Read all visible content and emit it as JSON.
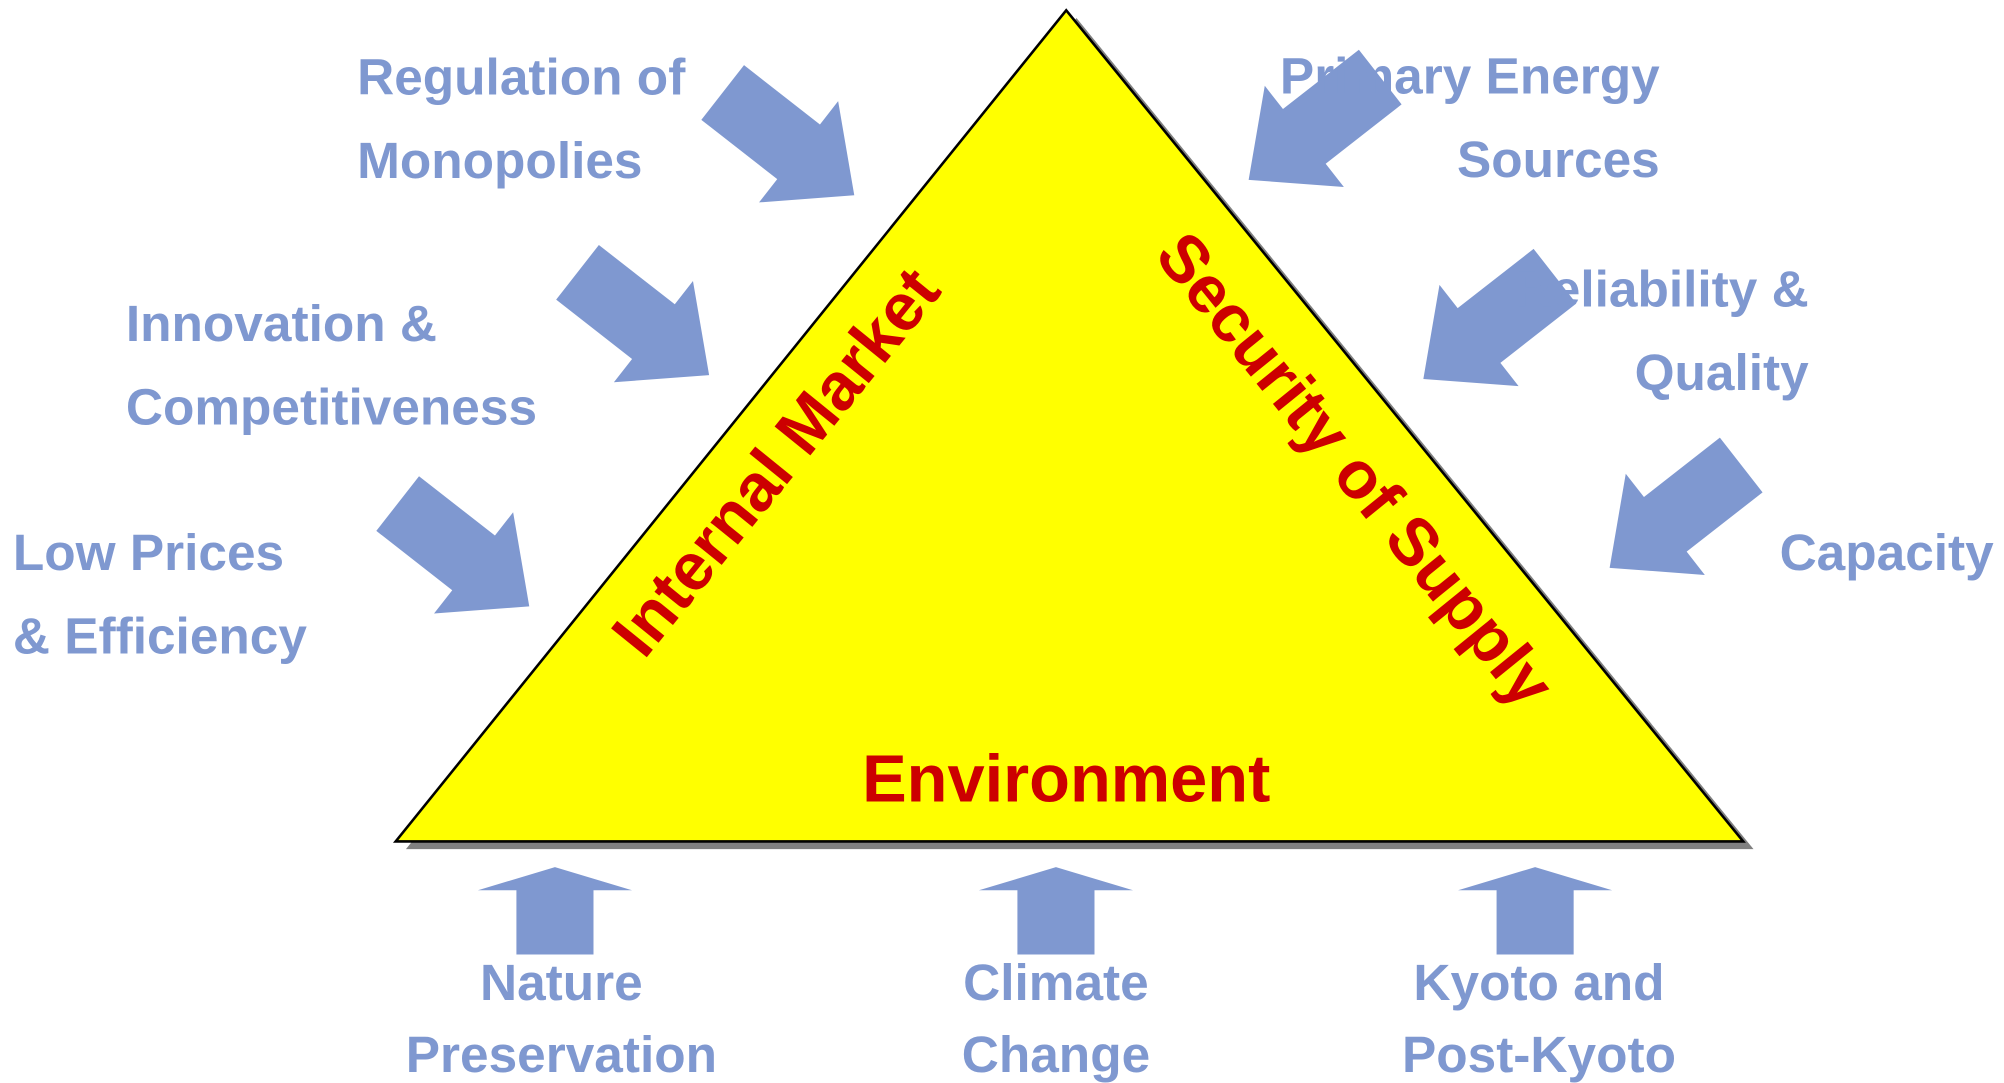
{
  "triangle": {
    "left": "Internal Market",
    "right": "Security of Supply",
    "bottom": "Environment"
  },
  "drivers": {
    "left": [
      {
        "lines": [
          "Regulation of",
          "Monopolies"
        ]
      },
      {
        "lines": [
          "Innovation &",
          "Competitiveness"
        ]
      },
      {
        "lines": [
          "Low Prices",
          "& Efficiency"
        ]
      }
    ],
    "right": [
      {
        "lines": [
          "Primary Energy",
          "Sources"
        ]
      },
      {
        "lines": [
          "Reliability &",
          "Quality"
        ]
      },
      {
        "lines": [
          "Capacity"
        ]
      }
    ],
    "bottom": [
      {
        "lines": [
          "Nature",
          "Preservation"
        ]
      },
      {
        "lines": [
          "Climate",
          "Change"
        ]
      },
      {
        "lines": [
          "Kyoto and",
          "Post-Kyoto"
        ]
      }
    ]
  }
}
